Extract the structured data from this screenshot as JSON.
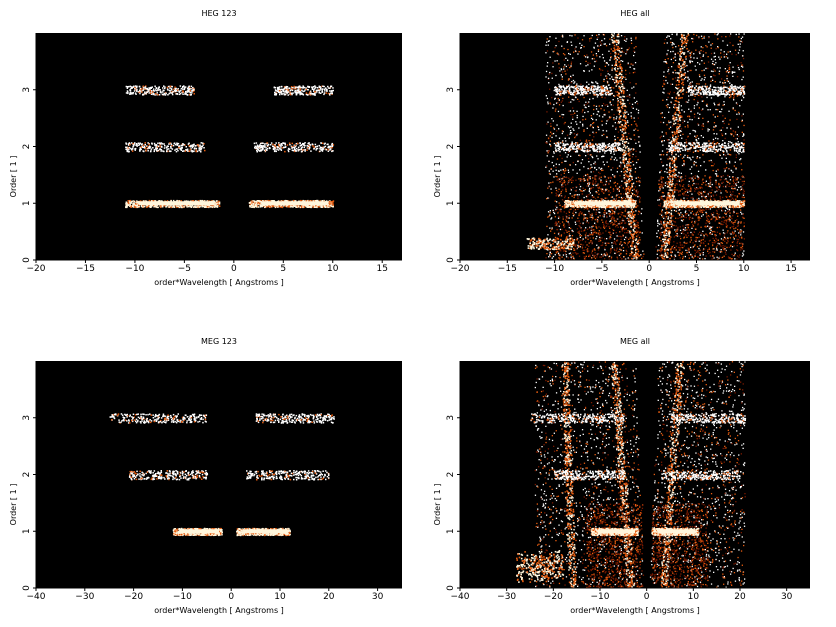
{
  "colors": {
    "background": "#000000",
    "dim": "#7a1a00",
    "mid": "#e65c10",
    "bright": "#fff6dc",
    "white": "#ffffff"
  },
  "chart_data": [
    {
      "type": "heatmap",
      "title": "HEG 123",
      "xlabel": "order*Wavelength [ Angstroms ]",
      "ylabel": "Order [ 1 ]",
      "xlim": [
        -20,
        17
      ],
      "ylim": [
        0,
        4
      ],
      "xticks": [
        -20,
        -15,
        -10,
        -5,
        0,
        5,
        10,
        15
      ],
      "yticks": [
        0,
        1,
        2,
        3
      ],
      "bands": [
        {
          "order": 1,
          "x_ranges": [
            [
              -11,
              -1.5
            ],
            [
              1.5,
              10
            ]
          ]
        },
        {
          "order": 2,
          "x_ranges": [
            [
              -11,
              -3
            ],
            [
              2,
              10
            ]
          ]
        },
        {
          "order": 3,
          "x_ranges": [
            [
              -11,
              -4
            ],
            [
              4,
              10
            ]
          ]
        }
      ]
    },
    {
      "type": "heatmap",
      "title": "HEG all",
      "xlabel": "order*Wavelength [ Angstroms ]",
      "ylabel": "Order [ 1 ]",
      "xlim": [
        -20,
        17
      ],
      "ylim": [
        0,
        4
      ],
      "xticks": [
        -20,
        -15,
        -10,
        -5,
        0,
        5,
        10,
        15
      ],
      "yticks": [
        0,
        1,
        2,
        3
      ],
      "bands": [
        {
          "order": 1,
          "x_ranges": [
            [
              -9,
              -1.5
            ],
            [
              1.5,
              10
            ]
          ]
        },
        {
          "order": 2,
          "x_ranges": [
            [
              -10,
              -3
            ],
            [
              2,
              10
            ]
          ]
        },
        {
          "order": 3,
          "x_ranges": [
            [
              -10,
              -4
            ],
            [
              4,
              10
            ]
          ]
        }
      ]
    },
    {
      "type": "heatmap",
      "title": "MEG 123",
      "xlabel": "order*Wavelength [ Angstroms ]",
      "ylabel": "Order [ 1 ]",
      "xlim": [
        -40,
        35
      ],
      "ylim": [
        0,
        4
      ],
      "xticks": [
        -40,
        -30,
        -20,
        -10,
        0,
        10,
        20,
        30
      ],
      "yticks": [
        0,
        1,
        2,
        3
      ],
      "bands": [
        {
          "order": 1,
          "x_ranges": [
            [
              -12,
              -2
            ],
            [
              1,
              12
            ]
          ]
        },
        {
          "order": 2,
          "x_ranges": [
            [
              -21,
              -5
            ],
            [
              3,
              20
            ]
          ]
        },
        {
          "order": 3,
          "x_ranges": [
            [
              -25,
              -5
            ],
            [
              5,
              21
            ]
          ]
        }
      ]
    },
    {
      "type": "heatmap",
      "title": "MEG all",
      "xlabel": "order*Wavelength [ Angstroms ]",
      "ylabel": "Order [ 1 ]",
      "xlim": [
        -40,
        35
      ],
      "ylim": [
        0,
        4
      ],
      "xticks": [
        -40,
        -30,
        -20,
        -10,
        0,
        10,
        20,
        30
      ],
      "yticks": [
        0,
        1,
        2,
        3
      ],
      "bands": [
        {
          "order": 1,
          "x_ranges": [
            [
              -12,
              -2
            ],
            [
              1,
              11
            ]
          ]
        },
        {
          "order": 2,
          "x_ranges": [
            [
              -20,
              -5
            ],
            [
              3,
              20
            ]
          ]
        },
        {
          "order": 3,
          "x_ranges": [
            [
              -25,
              -5
            ],
            [
              5,
              21
            ]
          ]
        }
      ]
    }
  ]
}
